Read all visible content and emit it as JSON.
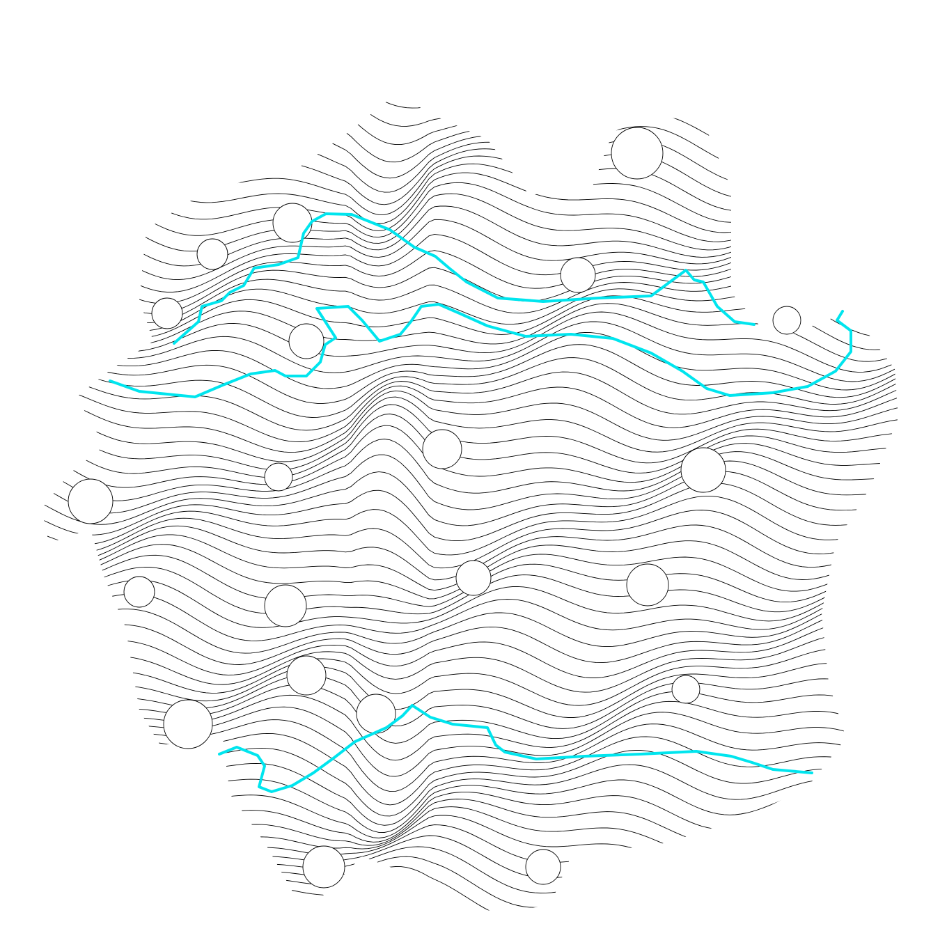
{
  "artwork": {
    "description_visible_text": "",
    "line_color": "#000000",
    "highlight_color": "#00e5ee",
    "background_color": "#ffffff",
    "contour_count": 72,
    "highlighted_contours": [
      {
        "name": "upper-highlight-a",
        "color": "#00e5ee"
      },
      {
        "name": "upper-highlight-b",
        "color": "#00e5ee"
      },
      {
        "name": "upper-highlight-c",
        "color": "#00e5ee"
      },
      {
        "name": "lower-highlight",
        "color": "#00e5ee"
      }
    ]
  }
}
